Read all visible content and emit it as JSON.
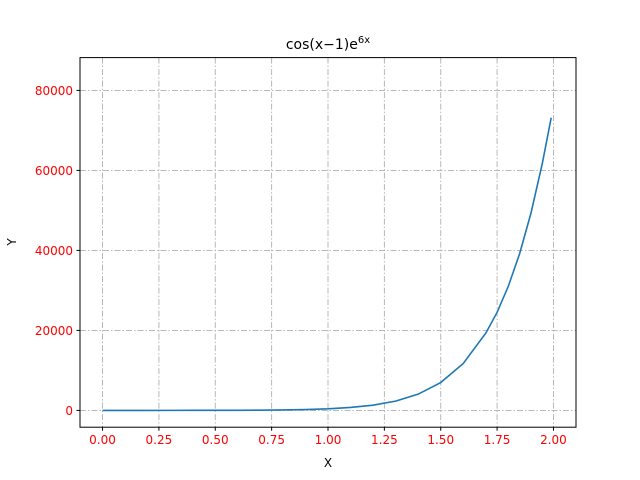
{
  "chart_data": {
    "type": "line",
    "title": "cos(x−1)e",
    "title_superscript": "6x",
    "xlabel": "X",
    "ylabel": "Y",
    "xlim": [
      -0.1,
      2.1
    ],
    "ylim": [
      -4200,
      88200
    ],
    "x_ticks": [
      0.0,
      0.25,
      0.5,
      0.75,
      1.0,
      1.25,
      1.5,
      1.75,
      2.0
    ],
    "x_tick_labels": [
      "0.00",
      "0.25",
      "0.50",
      "0.75",
      "1.00",
      "1.25",
      "1.50",
      "1.75",
      "2.00"
    ],
    "y_ticks": [
      0,
      20000,
      40000,
      60000,
      80000
    ],
    "y_tick_labels": [
      "0",
      "20000",
      "40000",
      "60000",
      "80000"
    ],
    "grid": true,
    "tick_label_color": "#ff0000",
    "series": [
      {
        "color": "#1f77b4",
        "x": [
          0.0,
          0.1,
          0.2,
          0.3,
          0.4,
          0.5,
          0.6,
          0.7,
          0.8,
          0.9,
          1.0,
          1.1,
          1.2,
          1.3,
          1.4,
          1.5,
          1.6,
          1.7,
          1.75,
          1.8,
          1.85,
          1.9,
          1.95,
          1.99
        ],
        "y": [
          0.5,
          1,
          2.7,
          4.7,
          9,
          17.7,
          33.5,
          63,
          118,
          220,
          403,
          731,
          1311,
          2322,
          4055,
          6965,
          11733,
          19331,
          24520,
          31064,
          39193,
          49254,
          61574,
          73167
        ]
      }
    ]
  }
}
